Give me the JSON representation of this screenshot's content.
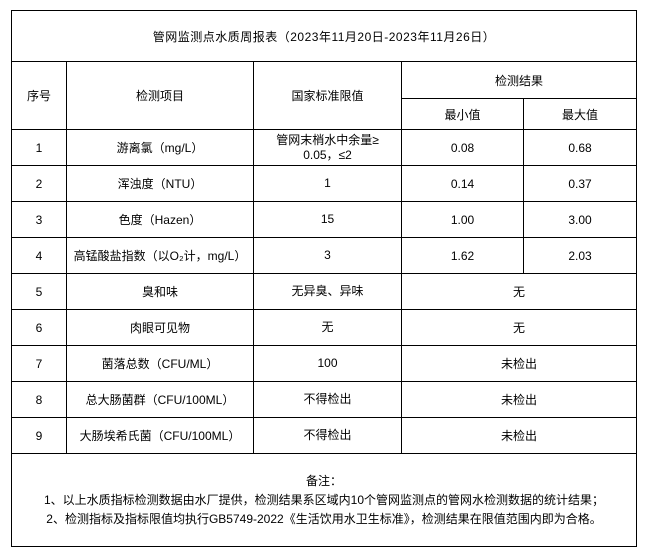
{
  "title": "管网监测点水质周报表（2023年11月20日-2023年11月26日）",
  "table": {
    "headers": {
      "no": "序号",
      "item": "检测项目",
      "limit": "国家标准限值",
      "result": "检测结果",
      "min": "最小值",
      "max": "最大值"
    },
    "rows": [
      {
        "no": "1",
        "item": "游离氯（mg/L）",
        "limit": "管网末梢水中余量≥\n0.05，≤2",
        "min": "0.08",
        "max": "0.68"
      },
      {
        "no": "2",
        "item": "浑浊度（NTU）",
        "limit": "1",
        "min": "0.14",
        "max": "0.37"
      },
      {
        "no": "3",
        "item": "色度（Hazen）",
        "limit": "15",
        "min": "1.00",
        "max": "3.00"
      },
      {
        "no": "4",
        "item": "高锰酸盐指数（以O₂计，mg/L）",
        "limit": "3",
        "min": "1.62",
        "max": "2.03"
      },
      {
        "no": "5",
        "item": "臭和味",
        "limit": "无异臭、异味",
        "result": "无"
      },
      {
        "no": "6",
        "item": "肉眼可见物",
        "limit": "无",
        "result": "无"
      },
      {
        "no": "7",
        "item": "菌落总数（CFU/ML）",
        "limit": "100",
        "result": "未检出"
      },
      {
        "no": "8",
        "item": "总大肠菌群（CFU/100ML）",
        "limit": "不得检出",
        "result": "未检出"
      },
      {
        "no": "9",
        "item": "大肠埃希氏菌（CFU/100ML）",
        "limit": "不得检出",
        "result": "未检出"
      }
    ]
  },
  "notes": {
    "text": "备注：\n1、以上水质指标检测数据由水厂提供，检测结果系区域内10个管网监测点的管网水检测数据的统计结果；\n2、检测指标及指标限值均执行GB5749-2022《生活饮用水卫生标准》，检测结果在限值范围内即为合格。"
  },
  "colors": {
    "border": "#000000",
    "text": "#000000",
    "background": "#ffffff"
  }
}
